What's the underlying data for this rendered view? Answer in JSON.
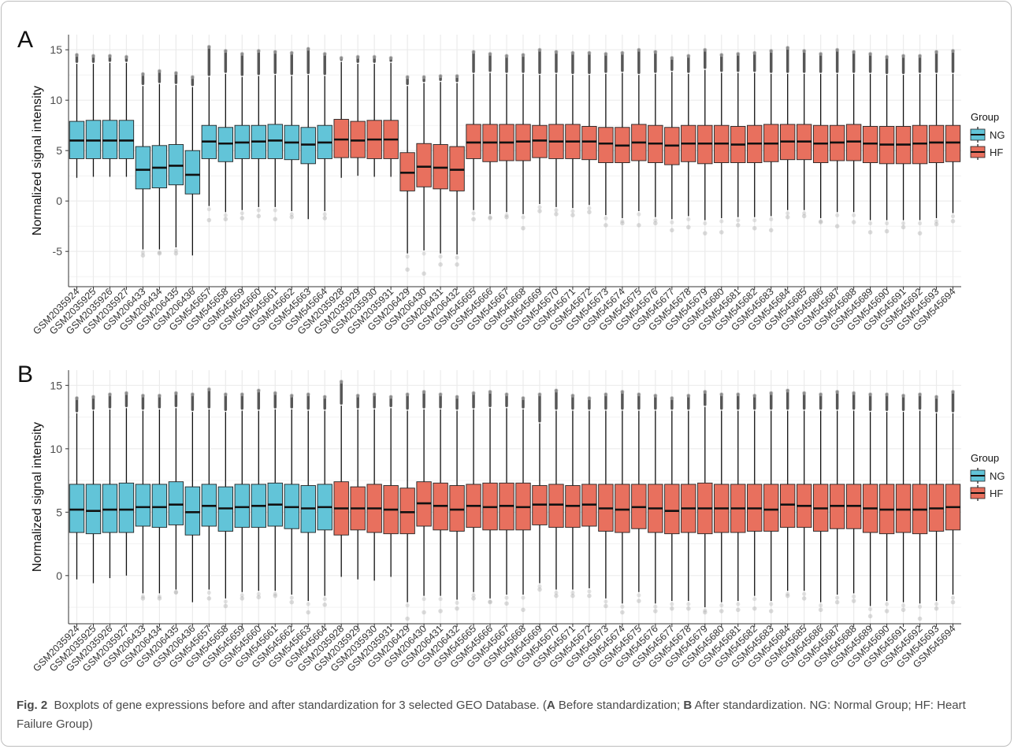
{
  "caption": {
    "fig_label": "Fig. 2",
    "text_1": "Boxplots of gene expressions before and after standardization for 3 selected GEO Database. (",
    "label_a": "A",
    "text_2": " Before standardization; ",
    "label_b": "B",
    "text_3": " After standardization. NG: Normal Group; HF: Heart Failure Group)"
  },
  "colors": {
    "NG": "#62c4d8",
    "HF": "#e8705e",
    "grid": "#ebebeb",
    "outlier": "#b0b0b0"
  },
  "chart_data": [
    {
      "panel": "A",
      "type": "box",
      "ylabel": "Normalized signal intensity",
      "ylim": [
        -8.5,
        16.5
      ],
      "yticks": [
        -5,
        0,
        5,
        10,
        15
      ],
      "grid": true,
      "legend": {
        "title": "Group",
        "position": "right",
        "entries": [
          "NG",
          "HF"
        ]
      },
      "categories": [
        "GSM2035924",
        "GSM2035925",
        "GSM2035926",
        "GSM2035927",
        "GSM206433",
        "GSM206434",
        "GSM206435",
        "GSM206436",
        "GSM545657",
        "GSM545658",
        "GSM545659",
        "GSM545660",
        "GSM545661",
        "GSM545662",
        "GSM545663",
        "GSM545664",
        "GSM2035928",
        "GSM2035929",
        "GSM2035930",
        "GSM2035931",
        "GSM206429",
        "GSM206430",
        "GSM206431",
        "GSM206432",
        "GSM545665",
        "GSM545666",
        "GSM545667",
        "GSM545668",
        "GSM545669",
        "GSM545670",
        "GSM545671",
        "GSM545672",
        "GSM545673",
        "GSM545674",
        "GSM545675",
        "GSM545676",
        "GSM545677",
        "GSM545678",
        "GSM545679",
        "GSM545680",
        "GSM545681",
        "GSM545682",
        "GSM545683",
        "GSM545684",
        "GSM545685",
        "GSM545686",
        "GSM545687",
        "GSM545688",
        "GSM545689",
        "GSM545690",
        "GSM545691",
        "GSM545692",
        "GSM545693",
        "GSM545694"
      ],
      "groups": [
        "NG",
        "NG",
        "NG",
        "NG",
        "NG",
        "NG",
        "NG",
        "NG",
        "NG",
        "NG",
        "NG",
        "NG",
        "NG",
        "NG",
        "NG",
        "NG",
        "HF",
        "HF",
        "HF",
        "HF",
        "HF",
        "HF",
        "HF",
        "HF",
        "HF",
        "HF",
        "HF",
        "HF",
        "HF",
        "HF",
        "HF",
        "HF",
        "HF",
        "HF",
        "HF",
        "HF",
        "HF",
        "HF",
        "HF",
        "HF",
        "HF",
        "HF",
        "HF",
        "HF",
        "HF",
        "HF",
        "HF",
        "HF",
        "HF",
        "HF",
        "HF",
        "HF",
        "HF",
        "HF"
      ],
      "q1": [
        4.2,
        4.2,
        4.2,
        4.2,
        1.2,
        1.3,
        1.6,
        0.7,
        4.2,
        3.9,
        4.2,
        4.2,
        4.2,
        4.1,
        3.7,
        4.2,
        4.3,
        4.3,
        4.2,
        4.2,
        1.0,
        1.4,
        1.2,
        1.0,
        4.2,
        3.9,
        4.0,
        4.0,
        4.3,
        4.2,
        4.2,
        4.1,
        3.8,
        3.8,
        4.0,
        3.8,
        3.6,
        3.9,
        3.7,
        3.8,
        3.8,
        3.8,
        3.9,
        4.1,
        4.1,
        3.8,
        4.0,
        4.0,
        3.8,
        3.7,
        3.7,
        3.7,
        3.8,
        3.9
      ],
      "median": [
        6.0,
        6.0,
        6.0,
        6.0,
        3.1,
        3.3,
        3.5,
        2.6,
        5.9,
        5.7,
        5.8,
        5.9,
        6.0,
        5.8,
        5.6,
        5.8,
        6.1,
        6.0,
        6.1,
        6.1,
        2.8,
        3.4,
        3.3,
        3.1,
        5.8,
        5.8,
        5.8,
        5.9,
        6.0,
        5.9,
        5.9,
        5.9,
        5.7,
        5.5,
        5.8,
        5.7,
        5.5,
        5.7,
        5.7,
        5.7,
        5.6,
        5.7,
        5.7,
        5.9,
        5.9,
        5.7,
        5.8,
        5.9,
        5.7,
        5.6,
        5.6,
        5.7,
        5.8,
        5.8
      ],
      "q3": [
        7.9,
        8.0,
        8.0,
        8.0,
        5.4,
        5.5,
        5.6,
        5.0,
        7.5,
        7.3,
        7.5,
        7.5,
        7.6,
        7.5,
        7.3,
        7.5,
        8.1,
        7.9,
        8.0,
        8.0,
        4.8,
        5.7,
        5.6,
        5.4,
        7.6,
        7.6,
        7.6,
        7.6,
        7.5,
        7.6,
        7.6,
        7.4,
        7.3,
        7.3,
        7.6,
        7.5,
        7.3,
        7.5,
        7.5,
        7.5,
        7.4,
        7.5,
        7.6,
        7.6,
        7.6,
        7.5,
        7.5,
        7.6,
        7.4,
        7.4,
        7.4,
        7.5,
        7.5,
        7.5
      ],
      "whisker_low": [
        2.3,
        2.4,
        2.4,
        2.4,
        -4.8,
        -4.8,
        -4.6,
        -5.4,
        -0.5,
        -1.1,
        -0.9,
        -0.6,
        -0.6,
        -1.0,
        -1.8,
        -1.0,
        2.3,
        2.5,
        2.4,
        2.4,
        -5.2,
        -4.9,
        -5.2,
        -5.3,
        -0.9,
        -1.3,
        -1.1,
        -1.3,
        -0.3,
        -0.6,
        -0.7,
        -0.4,
        -1.4,
        -1.7,
        -1.0,
        -1.6,
        -1.8,
        -1.5,
        -1.9,
        -1.7,
        -1.6,
        -1.6,
        -1.5,
        -0.9,
        -0.9,
        -1.7,
        -1.1,
        -1.1,
        -1.9,
        -1.9,
        -1.9,
        -1.9,
        -1.7,
        -1.2
      ],
      "whisker_high": [
        13.6,
        13.6,
        13.7,
        13.7,
        11.4,
        11.6,
        11.5,
        11.3,
        12.3,
        12.6,
        12.3,
        12.4,
        12.5,
        12.4,
        12.5,
        12.4,
        13.8,
        13.6,
        13.6,
        13.7,
        11.4,
        11.7,
        11.8,
        11.7,
        12.6,
        12.7,
        12.6,
        12.6,
        12.5,
        12.6,
        12.5,
        12.5,
        12.6,
        12.7,
        12.5,
        12.6,
        12.8,
        12.6,
        13.0,
        12.7,
        12.7,
        12.7,
        12.6,
        12.6,
        12.6,
        12.6,
        12.6,
        12.6,
        12.6,
        12.5,
        12.5,
        12.6,
        12.6,
        12.6
      ],
      "outlier_high": [
        14.5,
        14.4,
        14.4,
        14.3,
        12.6,
        12.9,
        12.7,
        12.3,
        15.3,
        14.9,
        14.6,
        14.9,
        14.8,
        14.7,
        15.1,
        14.6,
        14.2,
        14.3,
        14.3,
        14.2,
        12.3,
        12.3,
        12.4,
        12.4,
        14.8,
        14.6,
        14.4,
        14.5,
        15.0,
        14.8,
        14.7,
        14.7,
        14.6,
        14.7,
        15.0,
        14.8,
        14.2,
        14.4,
        15.0,
        14.5,
        14.6,
        14.7,
        14.9,
        15.2,
        14.9,
        14.6,
        15.0,
        14.8,
        14.6,
        14.3,
        14.4,
        14.4,
        14.8,
        14.9
      ],
      "outlier_low": [
        null,
        null,
        null,
        null,
        -5.4,
        -5.2,
        -5.2,
        null,
        -1.9,
        -1.8,
        -1.7,
        -1.5,
        -1.8,
        -1.6,
        null,
        -1.7,
        null,
        null,
        null,
        null,
        -6.8,
        -7.2,
        -6.3,
        -6.3,
        -1.8,
        -1.7,
        -1.6,
        -2.7,
        -1.0,
        -1.3,
        -1.4,
        -1.1,
        -2.4,
        -2.2,
        -2.4,
        -2.2,
        -2.9,
        -2.6,
        -3.2,
        -3.1,
        -2.4,
        -2.7,
        -2.9,
        -1.6,
        -1.5,
        -2.1,
        -2.5,
        -2.1,
        -3.1,
        -3.0,
        -2.6,
        -3.2,
        -2.3,
        -2.0
      ]
    },
    {
      "panel": "B",
      "type": "box",
      "ylabel": "Normalized signal intensity",
      "ylim": [
        -3.8,
        16.2
      ],
      "yticks": [
        0,
        5,
        10,
        15
      ],
      "grid": true,
      "legend": {
        "title": "Group",
        "position": "right",
        "entries": [
          "NG",
          "HF"
        ]
      },
      "categories": [
        "GSM2035924",
        "GSM2035925",
        "GSM2035926",
        "GSM2035927",
        "GSM206433",
        "GSM206434",
        "GSM206435",
        "GSM206436",
        "GSM545657",
        "GSM545658",
        "GSM545659",
        "GSM545660",
        "GSM545661",
        "GSM545662",
        "GSM545663",
        "GSM545664",
        "GSM2035928",
        "GSM2035929",
        "GSM2035930",
        "GSM2035931",
        "GSM206429",
        "GSM206430",
        "GSM206431",
        "GSM206432",
        "GSM545665",
        "GSM545666",
        "GSM545667",
        "GSM545668",
        "GSM545669",
        "GSM545670",
        "GSM545671",
        "GSM545672",
        "GSM545673",
        "GSM545674",
        "GSM545675",
        "GSM545676",
        "GSM545677",
        "GSM545678",
        "GSM545679",
        "GSM545680",
        "GSM545681",
        "GSM545682",
        "GSM545683",
        "GSM545684",
        "GSM545685",
        "GSM545686",
        "GSM545687",
        "GSM545688",
        "GSM545689",
        "GSM545690",
        "GSM545691",
        "GSM545692",
        "GSM545693",
        "GSM545694"
      ],
      "groups": [
        "NG",
        "NG",
        "NG",
        "NG",
        "NG",
        "NG",
        "NG",
        "NG",
        "NG",
        "NG",
        "NG",
        "NG",
        "NG",
        "NG",
        "NG",
        "NG",
        "HF",
        "HF",
        "HF",
        "HF",
        "HF",
        "HF",
        "HF",
        "HF",
        "HF",
        "HF",
        "HF",
        "HF",
        "HF",
        "HF",
        "HF",
        "HF",
        "HF",
        "HF",
        "HF",
        "HF",
        "HF",
        "HF",
        "HF",
        "HF",
        "HF",
        "HF",
        "HF",
        "HF",
        "HF",
        "HF",
        "HF",
        "HF",
        "HF",
        "HF",
        "HF",
        "HF",
        "HF",
        "HF"
      ],
      "q1": [
        3.4,
        3.3,
        3.4,
        3.4,
        3.9,
        3.8,
        4.0,
        3.2,
        3.9,
        3.5,
        3.8,
        3.8,
        3.9,
        3.7,
        3.4,
        3.6,
        3.2,
        3.6,
        3.4,
        3.3,
        3.3,
        3.9,
        3.6,
        3.5,
        3.8,
        3.6,
        3.6,
        3.6,
        4.0,
        3.8,
        3.8,
        3.9,
        3.5,
        3.4,
        3.7,
        3.4,
        3.3,
        3.4,
        3.3,
        3.4,
        3.4,
        3.5,
        3.5,
        3.8,
        3.8,
        3.5,
        3.7,
        3.7,
        3.4,
        3.3,
        3.4,
        3.3,
        3.5,
        3.6
      ],
      "median": [
        5.2,
        5.1,
        5.2,
        5.2,
        5.4,
        5.4,
        5.6,
        5.0,
        5.5,
        5.3,
        5.4,
        5.5,
        5.6,
        5.4,
        5.3,
        5.4,
        5.3,
        5.3,
        5.3,
        5.2,
        5.0,
        5.7,
        5.5,
        5.2,
        5.5,
        5.4,
        5.5,
        5.4,
        5.6,
        5.6,
        5.5,
        5.6,
        5.3,
        5.2,
        5.4,
        5.3,
        5.1,
        5.3,
        5.3,
        5.3,
        5.3,
        5.3,
        5.2,
        5.6,
        5.5,
        5.3,
        5.5,
        5.5,
        5.3,
        5.2,
        5.2,
        5.2,
        5.3,
        5.4
      ],
      "q3": [
        7.2,
        7.2,
        7.2,
        7.3,
        7.2,
        7.2,
        7.4,
        7.0,
        7.2,
        7.0,
        7.2,
        7.2,
        7.3,
        7.2,
        7.1,
        7.2,
        7.4,
        7.0,
        7.2,
        7.1,
        6.9,
        7.4,
        7.3,
        7.1,
        7.2,
        7.3,
        7.3,
        7.3,
        7.1,
        7.2,
        7.1,
        7.2,
        7.2,
        7.2,
        7.2,
        7.2,
        7.2,
        7.2,
        7.3,
        7.2,
        7.2,
        7.2,
        7.2,
        7.2,
        7.2,
        7.2,
        7.2,
        7.2,
        7.2,
        7.2,
        7.2,
        7.2,
        7.2,
        7.2
      ],
      "whisker_low": [
        -0.3,
        -0.6,
        -0.2,
        0.0,
        -1.4,
        -1.4,
        -1.1,
        -2.1,
        -1.1,
        -1.8,
        -1.3,
        -1.2,
        -1.2,
        -1.5,
        -2.0,
        -1.6,
        -0.1,
        -0.3,
        -0.4,
        -0.1,
        -2.1,
        -1.6,
        -1.6,
        -1.9,
        -1.3,
        -1.8,
        -1.5,
        -1.5,
        -0.6,
        -1.1,
        -1.1,
        -1.0,
        -1.8,
        -2.2,
        -1.3,
        -2.2,
        -2.0,
        -2.0,
        -2.5,
        -2.1,
        -2.0,
        -1.6,
        -2.0,
        -1.2,
        -1.2,
        -2.1,
        -1.5,
        -1.4,
        -2.4,
        -2.0,
        -2.1,
        -2.2,
        -2.0,
        -1.5
      ],
      "whisker_high": [
        12.8,
        13.0,
        13.1,
        13.2,
        13.0,
        13.1,
        13.2,
        12.9,
        13.1,
        12.9,
        13.0,
        13.0,
        13.1,
        13.1,
        13.0,
        13.0,
        13.4,
        13.1,
        13.1,
        13.2,
        13.0,
        13.1,
        13.1,
        13.0,
        13.1,
        13.2,
        13.2,
        13.1,
        12.0,
        13.0,
        13.0,
        13.0,
        13.0,
        13.0,
        13.0,
        13.0,
        13.0,
        13.0,
        13.3,
        13.0,
        13.0,
        13.0,
        13.0,
        13.0,
        13.0,
        13.0,
        13.0,
        13.0,
        12.9,
        12.9,
        12.9,
        13.0,
        12.8,
        12.8
      ],
      "outlier_high": [
        14.0,
        14.1,
        14.3,
        14.4,
        14.2,
        14.2,
        14.4,
        14.3,
        14.7,
        14.3,
        14.3,
        14.6,
        14.4,
        14.2,
        14.3,
        14.1,
        15.3,
        14.2,
        14.3,
        14.1,
        14.3,
        14.5,
        14.3,
        14.1,
        14.4,
        14.5,
        14.3,
        14.0,
        14.3,
        14.6,
        14.2,
        14.0,
        14.3,
        14.5,
        14.3,
        14.2,
        14.0,
        14.2,
        14.5,
        14.3,
        14.3,
        14.2,
        14.4,
        14.6,
        14.4,
        14.3,
        14.5,
        14.4,
        14.3,
        14.3,
        14.2,
        14.3,
        14.1,
        14.5
      ],
      "outlier_low": [
        null,
        null,
        null,
        null,
        -1.8,
        -1.8,
        -1.3,
        null,
        -1.8,
        -2.4,
        -1.8,
        -1.7,
        -1.6,
        -2.1,
        -2.9,
        -2.3,
        null,
        null,
        null,
        null,
        -3.4,
        -2.9,
        -2.8,
        -2.6,
        -1.8,
        -2.1,
        -2.2,
        -2.7,
        -1.1,
        -1.6,
        -1.6,
        -1.6,
        -2.4,
        -2.9,
        -2.0,
        -2.8,
        -2.6,
        -2.6,
        -2.9,
        -2.8,
        -2.7,
        -2.6,
        -2.8,
        -1.6,
        -1.8,
        -2.7,
        -2.1,
        -2.0,
        -3.2,
        -2.8,
        -2.7,
        -3.4,
        -2.6,
        -2.1
      ]
    }
  ]
}
